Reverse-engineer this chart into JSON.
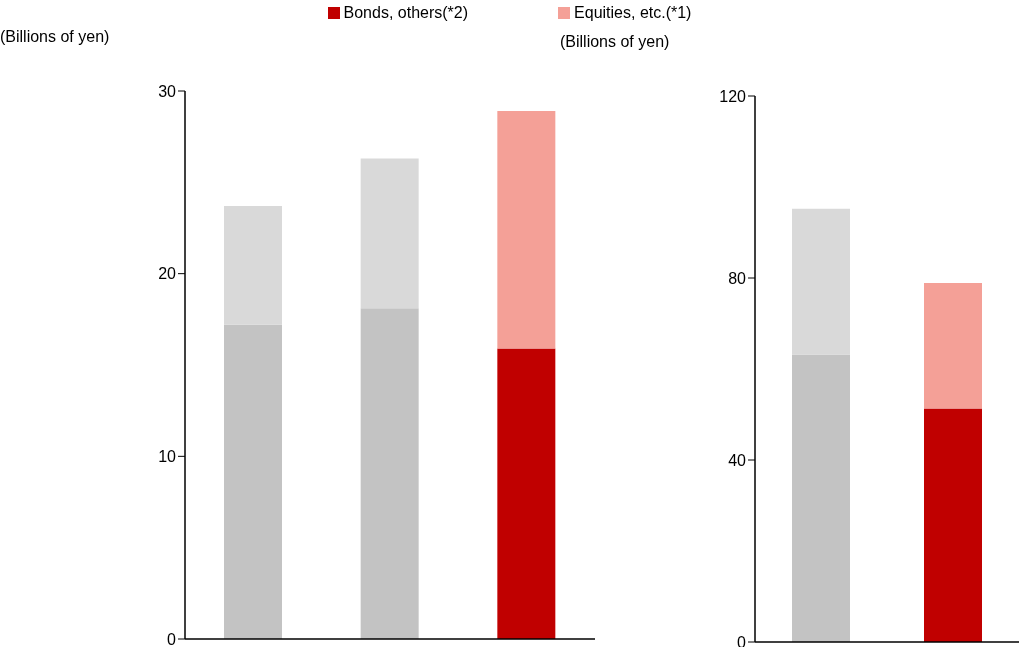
{
  "chart_data": [
    {
      "type": "bar",
      "stacked": true,
      "ylabel": "(Billions of yen)",
      "categories": [
        null,
        null,
        null
      ],
      "ylim": [
        0,
        30
      ],
      "yticks": [
        0,
        10,
        20,
        30
      ],
      "legend": "top",
      "series": [
        {
          "name": "Bonds, others(*2)",
          "color": "#c00000",
          "colors": [
            "#c3c3c3",
            "#c3c3c3",
            "#c00000"
          ],
          "values": [
            17.2,
            18.1,
            15.9
          ]
        },
        {
          "name": "Equities, etc.(*1)",
          "color": "#f4a097",
          "colors": [
            "#d9d9d9",
            "#d9d9d9",
            "#f4a097"
          ],
          "values": [
            6.5,
            8.2,
            13.0
          ]
        }
      ]
    },
    {
      "type": "bar",
      "stacked": true,
      "ylabel": "(Billions of yen)",
      "categories": [
        null,
        null
      ],
      "ylim": [
        0,
        120
      ],
      "yticks": [
        0,
        40,
        80,
        120
      ],
      "series": [
        {
          "color": "#c00000",
          "colors": [
            "#c3c3c3",
            "#c00000"
          ],
          "values": [
            63.2,
            51.3
          ]
        },
        {
          "color": "#f4a097",
          "colors": [
            "#d9d9d9",
            "#f4a097"
          ],
          "values": [
            32.0,
            27.6
          ]
        }
      ]
    }
  ]
}
